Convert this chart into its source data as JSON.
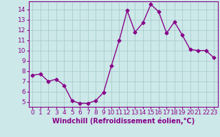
{
  "x": [
    0,
    1,
    2,
    3,
    4,
    5,
    6,
    7,
    8,
    9,
    10,
    11,
    12,
    13,
    14,
    15,
    16,
    17,
    18,
    19,
    20,
    21,
    22,
    23
  ],
  "y": [
    7.6,
    7.7,
    7.0,
    7.2,
    6.6,
    5.1,
    4.85,
    4.85,
    5.1,
    5.9,
    8.5,
    11.0,
    13.9,
    11.8,
    12.7,
    14.5,
    13.8,
    11.7,
    12.8,
    11.5,
    10.1,
    10.0,
    10.0,
    9.3
  ],
  "line_color": "#880088",
  "marker": "D",
  "marker_size": 2.5,
  "bg_color": "#cce8e8",
  "grid_color": "#aacccc",
  "xlabel": "Windchill (Refroidissement éolien,°C)",
  "xlabel_color": "#880088",
  "xlabel_fontsize": 7,
  "tick_color": "#880088",
  "tick_fontsize": 6.5,
  "ylim": [
    4.5,
    14.8
  ],
  "yticks": [
    5,
    6,
    7,
    8,
    9,
    10,
    11,
    12,
    13,
    14
  ],
  "xlim": [
    -0.5,
    23.5
  ],
  "xticks": [
    0,
    1,
    2,
    3,
    4,
    5,
    6,
    7,
    8,
    9,
    10,
    11,
    12,
    13,
    14,
    15,
    16,
    17,
    18,
    19,
    20,
    21,
    22,
    23
  ],
  "spine_color": "#880088",
  "linewidth": 1.0
}
